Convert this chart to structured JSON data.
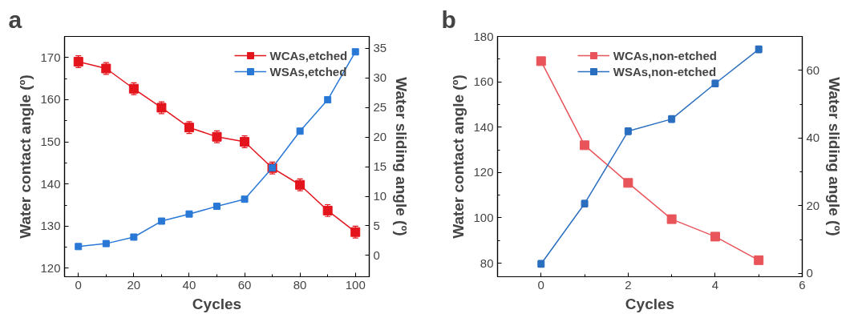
{
  "chart_data": [
    {
      "type": "line",
      "title": "a",
      "xlabel": "Cycles",
      "ylabel": "Water contact angle (º)",
      "y2label": "Water sliding angle (º)",
      "x": [
        0,
        10,
        20,
        30,
        40,
        50,
        60,
        70,
        80,
        90,
        100
      ],
      "series": [
        {
          "name": "WCAs,etched",
          "color": "#e3141c",
          "values": [
            169.0,
            167.4,
            162.6,
            158.1,
            153.4,
            151.2,
            150.0,
            143.8,
            139.8,
            133.7,
            128.6
          ],
          "errors": [
            1.4,
            1.4,
            1.4,
            1.4,
            1.4,
            1.4,
            1.4,
            1.4,
            1.4,
            1.4,
            1.4
          ]
        },
        {
          "name": "WSAs,etched",
          "color": "#2a78d6",
          "axis": "y2",
          "values": [
            1.5,
            2.0,
            3.1,
            5.8,
            7.0,
            8.3,
            9.5,
            14.8,
            21.0,
            26.3,
            34.4
          ],
          "errors": [
            0.4,
            0.4,
            0.4,
            0.4,
            0.4,
            0.4,
            0.4,
            0.6,
            0.4,
            0.4,
            0.4
          ]
        }
      ],
      "xlim": [
        -5,
        105
      ],
      "xticks": [
        0,
        {
          "value": 10,
          "label": null
        },
        20,
        {
          "value": 30,
          "label": null
        },
        40,
        {
          "value": 50,
          "label": null
        },
        60,
        {
          "value": 70,
          "label": null
        },
        80,
        {
          "value": 90,
          "label": null
        },
        100
      ],
      "ylim": [
        118,
        175
      ],
      "yticks": [
        120,
        {
          "value": 125,
          "label": null
        },
        130,
        {
          "value": 135,
          "label": null
        },
        140,
        {
          "value": 145,
          "label": null
        },
        150,
        {
          "value": 155,
          "label": null
        },
        160,
        {
          "value": 165,
          "label": null
        },
        170
      ],
      "y2lim": [
        -3.6,
        37
      ],
      "y2ticks": [
        0,
        5,
        10,
        15,
        20,
        25,
        30,
        35
      ],
      "marker": "square",
      "line_style": "solid",
      "legend": "top right"
    },
    {
      "type": "line",
      "title": "b",
      "xlabel": "Cycles",
      "ylabel": "Water contact angle (º)",
      "y2label": "Water sliding angle (º)",
      "x": [
        0,
        1,
        2,
        3,
        4,
        5
      ],
      "series": [
        {
          "name": "WCAs,non-etched",
          "color": "#e8545a",
          "values": [
            169.1,
            132.0,
            115.4,
            99.4,
            91.7,
            81.3
          ],
          "errors": [
            1.5,
            1.5,
            1.5,
            1.5,
            1.5,
            1.5
          ]
        },
        {
          "name": "WSAs,non-etched",
          "color": "#2a6ebf",
          "axis": "y2",
          "values": [
            2.8,
            20.6,
            42.0,
            45.6,
            56.1,
            66.2
          ],
          "errors": [
            1,
            1,
            1,
            1,
            1,
            1
          ]
        }
      ],
      "xlim": [
        -1,
        6
      ],
      "xticks": [
        0,
        {
          "value": 1,
          "label": null
        },
        2,
        {
          "value": 3,
          "label": null
        },
        4,
        {
          "value": 5,
          "label": null
        },
        6
      ],
      "ylim": [
        74,
        180
      ],
      "yticks": [
        80,
        {
          "value": 90,
          "label": null
        },
        100,
        {
          "value": 110,
          "label": null
        },
        120,
        {
          "value": 130,
          "label": null
        },
        140,
        {
          "value": 150,
          "label": null
        },
        160,
        {
          "value": 170,
          "label": null
        },
        180
      ],
      "y2lim": [
        -1,
        70
      ],
      "y2ticks": [
        0,
        {
          "value": 10,
          "label": null
        },
        20,
        {
          "value": 30,
          "label": null
        },
        40,
        {
          "value": 50,
          "label": null
        },
        60
      ],
      "marker": "square",
      "line_style": "solid",
      "legend": "top"
    }
  ]
}
